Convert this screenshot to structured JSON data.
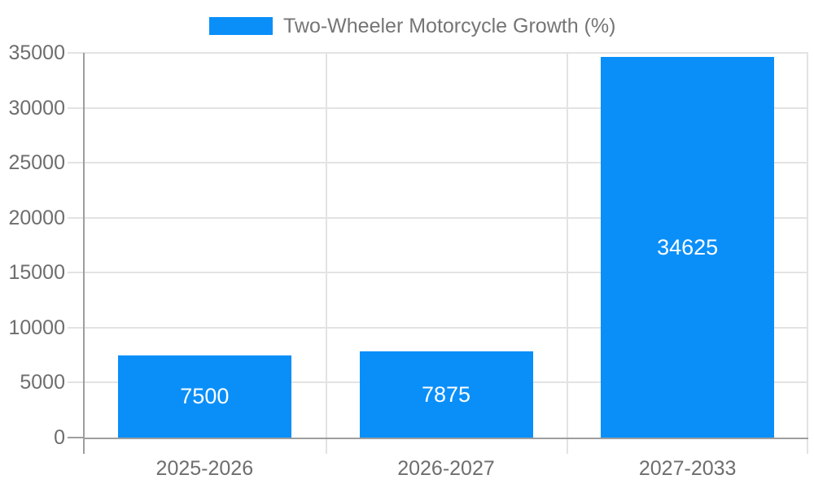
{
  "legend": {
    "label": "Two-Wheeler Motorcycle Growth (%)"
  },
  "colors": {
    "bar": "#0a8ff9",
    "axis_line": "#9e9e9e",
    "gridline": "#e3e3e3",
    "axis_text": "#6e6e6e",
    "legend_text": "#757575",
    "bar_label_text": "#ffffff",
    "background": "#ffffff"
  },
  "chart_data": {
    "type": "bar",
    "categories": [
      "2025-2026",
      "2026-2027",
      "2027-2033"
    ],
    "series": [
      {
        "name": "Two-Wheeler Motorcycle Growth (%)",
        "color": "#0a8ff9",
        "values": [
          7500,
          7875,
          34625
        ]
      }
    ],
    "bar_value_labels": [
      "7500",
      "7875",
      "34625"
    ],
    "ylim": [
      0,
      35000
    ],
    "ytick_step": 5000,
    "yticks": [
      0,
      5000,
      10000,
      15000,
      20000,
      25000,
      30000,
      35000
    ],
    "grid": true,
    "legend_position": "top"
  }
}
